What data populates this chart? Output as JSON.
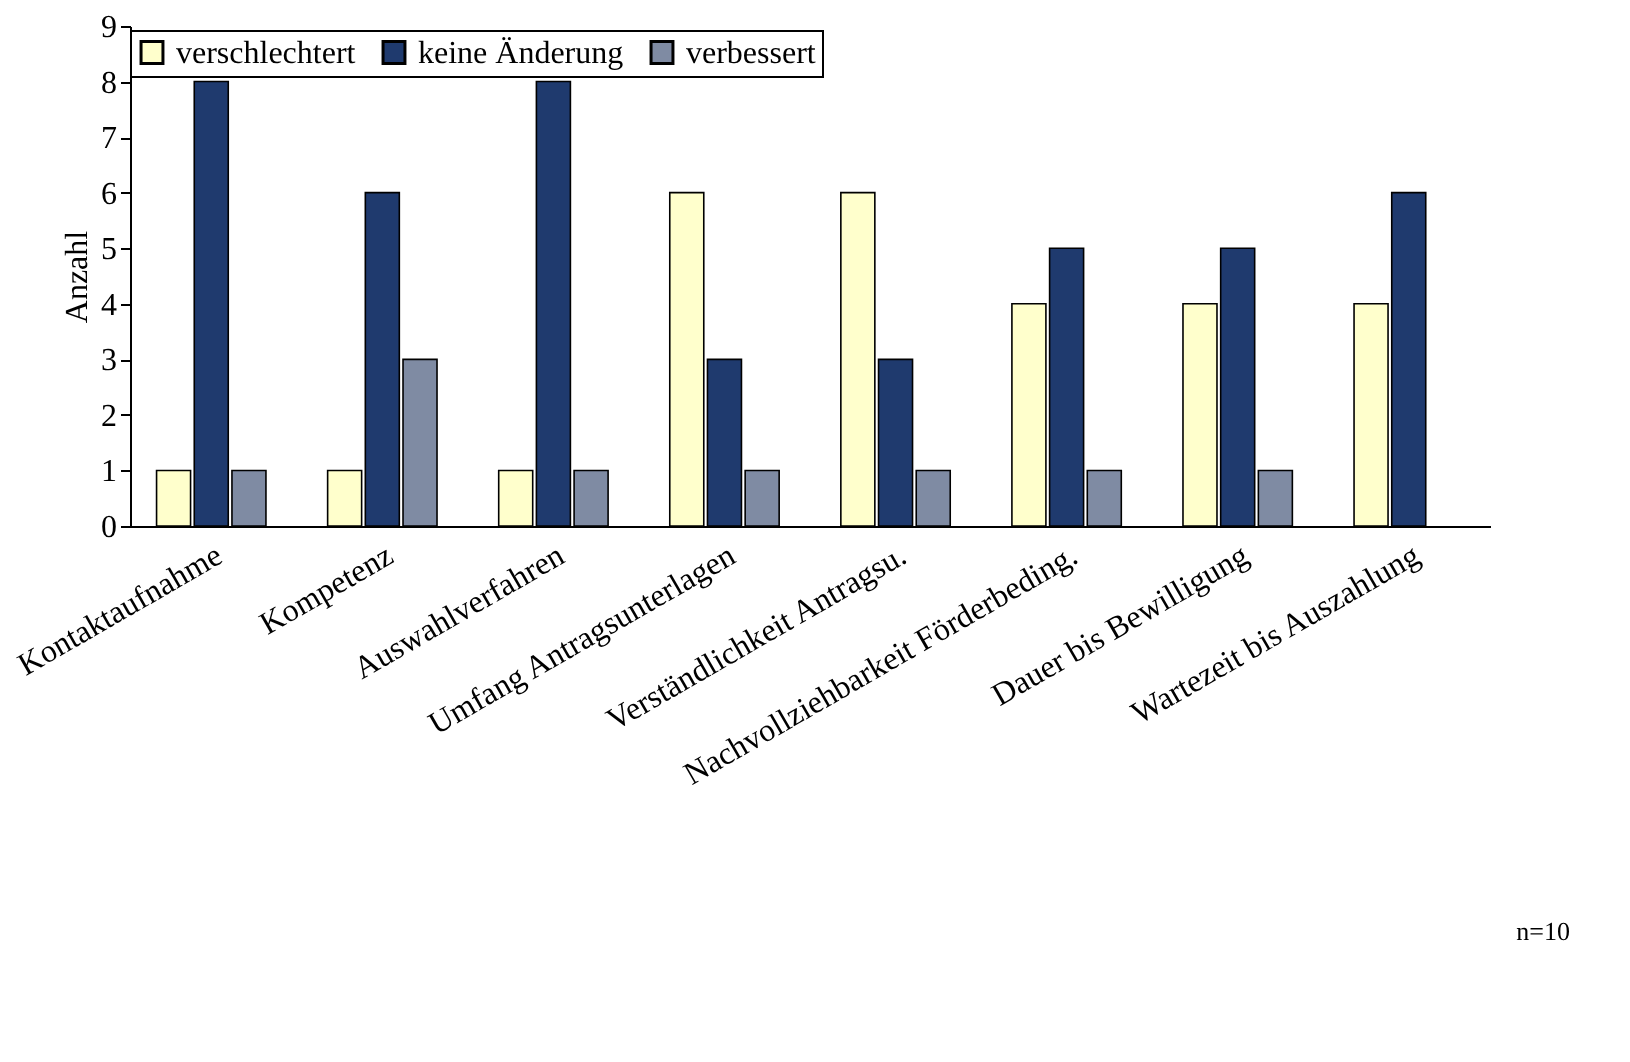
{
  "chart_data": {
    "type": "bar",
    "ylabel": "Anzahl",
    "categories": [
      "Kontaktaufnahme",
      "Kompetenz",
      "Auswahlverfahren",
      "Umfang Antragsunterlagen",
      "Verständlichkeit Antragsu.",
      "Nachvollziehbarkeit Förderbeding.",
      "Dauer bis Bewilligung",
      "Wartezeit bis Auszahlung"
    ],
    "series": [
      {
        "name": "verschlechtert",
        "color": "#ffffcc",
        "values": [
          1,
          1,
          1,
          6,
          6,
          4,
          4,
          4
        ]
      },
      {
        "name": "keine Änderung",
        "color": "#1f3a6e",
        "values": [
          8,
          6,
          8,
          3,
          3,
          5,
          5,
          6
        ]
      },
      {
        "name": "verbessert",
        "color": "#7f8ba3",
        "values": [
          1,
          3,
          1,
          1,
          1,
          1,
          1,
          0
        ]
      }
    ],
    "ylim": [
      0,
      9
    ],
    "yticks": [
      0,
      1,
      2,
      3,
      4,
      5,
      6,
      7,
      8,
      9
    ],
    "grid": false,
    "legend": "top",
    "annotations": [
      "n=10"
    ]
  }
}
